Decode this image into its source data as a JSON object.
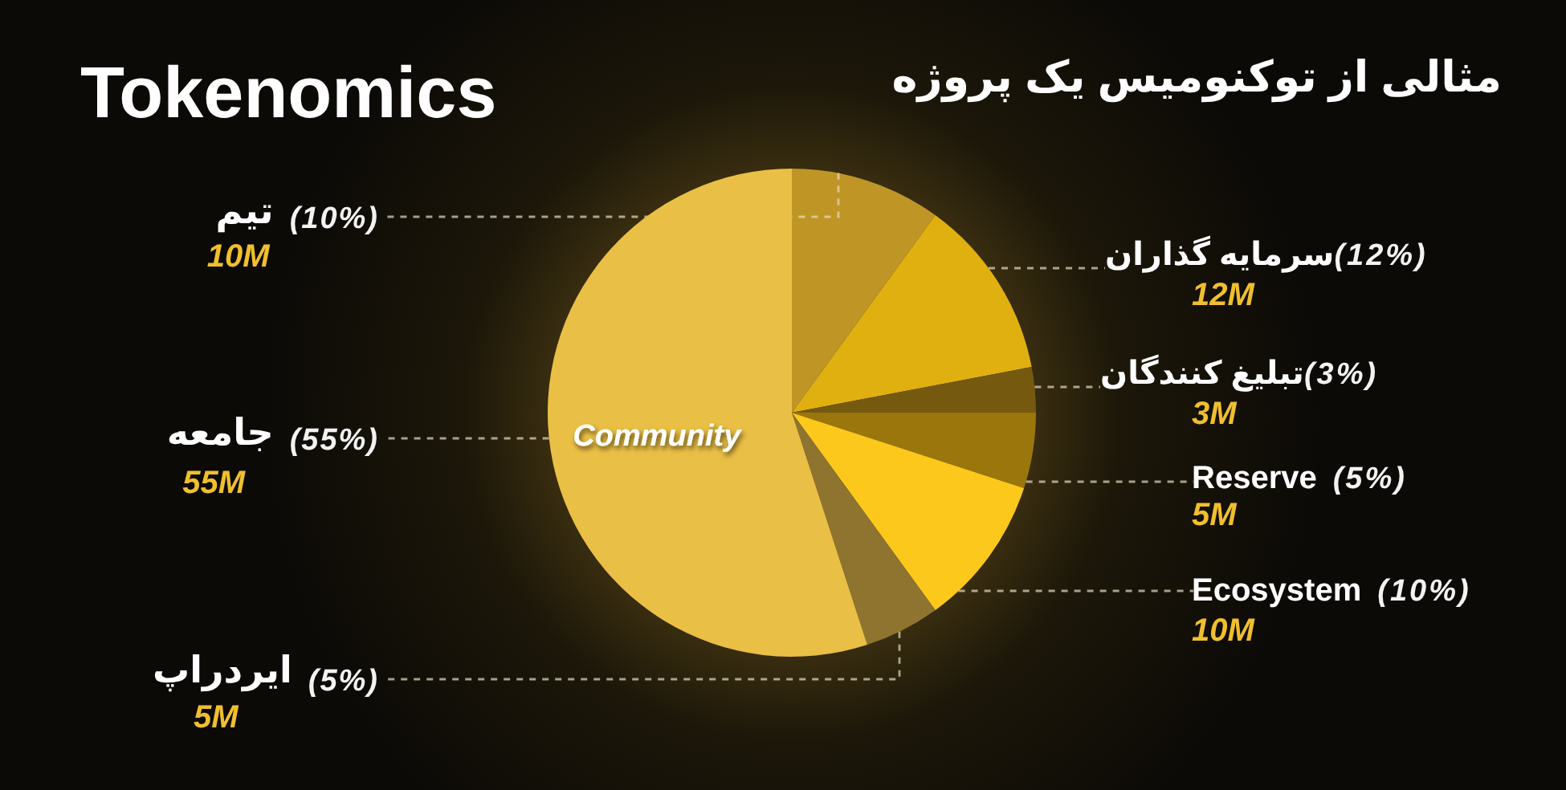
{
  "chart_data": {
    "type": "pie",
    "title": "Tokenomics",
    "subtitle": "مثالی از توکنومیس یک پروژه",
    "categories": [
      "تیم",
      "سرمایه گذاران",
      "تبلیغ کنندگان",
      "Reserve",
      "Ecosystem",
      "ایردراپ",
      "جامعه"
    ],
    "values": [
      10,
      12,
      3,
      5,
      10,
      5,
      55
    ],
    "colors": [
      "#bf9626",
      "#dfb010",
      "#75590f",
      "#9a760c",
      "#fcc81c",
      "#8f7430",
      "#eabf45"
    ],
    "value_labels": [
      "(10%)",
      "(12%)",
      "(3%)",
      "(5%)",
      "(10%)",
      "(5%)",
      "(55%)"
    ],
    "annotations": [
      "10M",
      "12M",
      "3M",
      "5M",
      "10M",
      "5M",
      "55M",
      "Community"
    ]
  }
}
